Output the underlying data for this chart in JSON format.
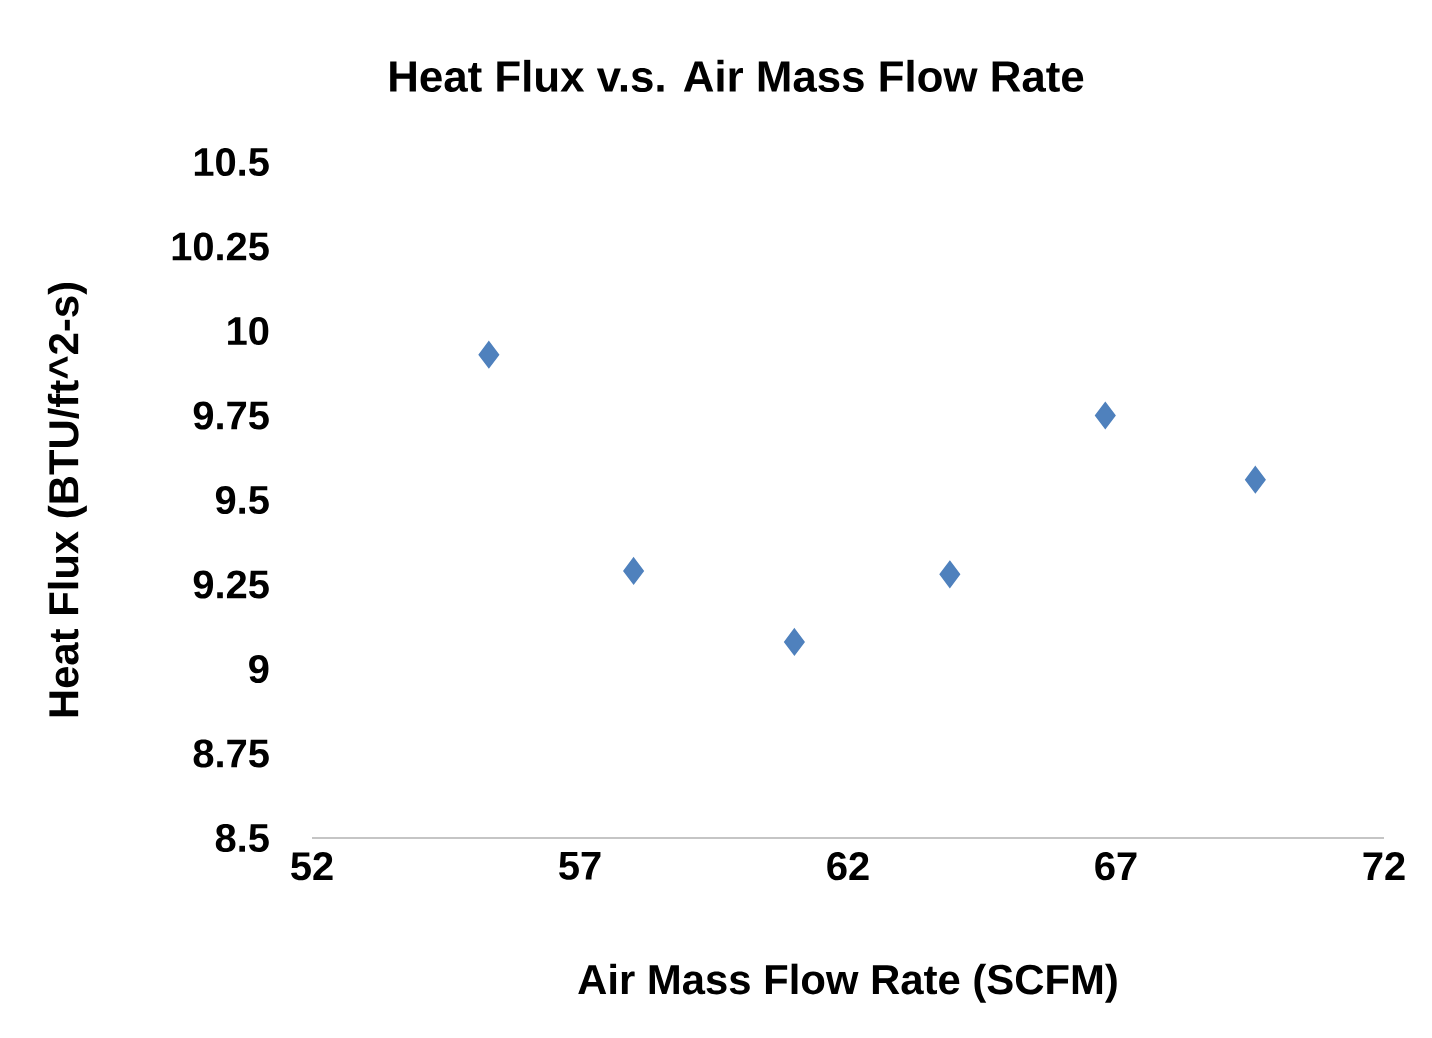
{
  "chart_data": {
    "type": "scatter",
    "title": "Heat Flux v.s. Air Mass Flow Rate",
    "xlabel": "Air Mass Flow Rate (SCFM)",
    "ylabel": "Heat Flux (BTU/ft^2-s)",
    "x": [
      55.3,
      58.0,
      61.0,
      63.9,
      66.8,
      69.6
    ],
    "series": [
      {
        "color": "#4f81bd",
        "values": [
          9.93,
          9.29,
          9.08,
          9.28,
          9.75,
          9.56
        ]
      }
    ],
    "xlim": [
      52,
      72
    ],
    "xticks": [
      52,
      57,
      62,
      67,
      72
    ],
    "ylim": [
      8.5,
      10.5
    ],
    "yticks": [
      8.5,
      8.75,
      9,
      9.25,
      9.5,
      9.75,
      10,
      10.25,
      10.5
    ],
    "marker": "diamond",
    "grid": false
  }
}
